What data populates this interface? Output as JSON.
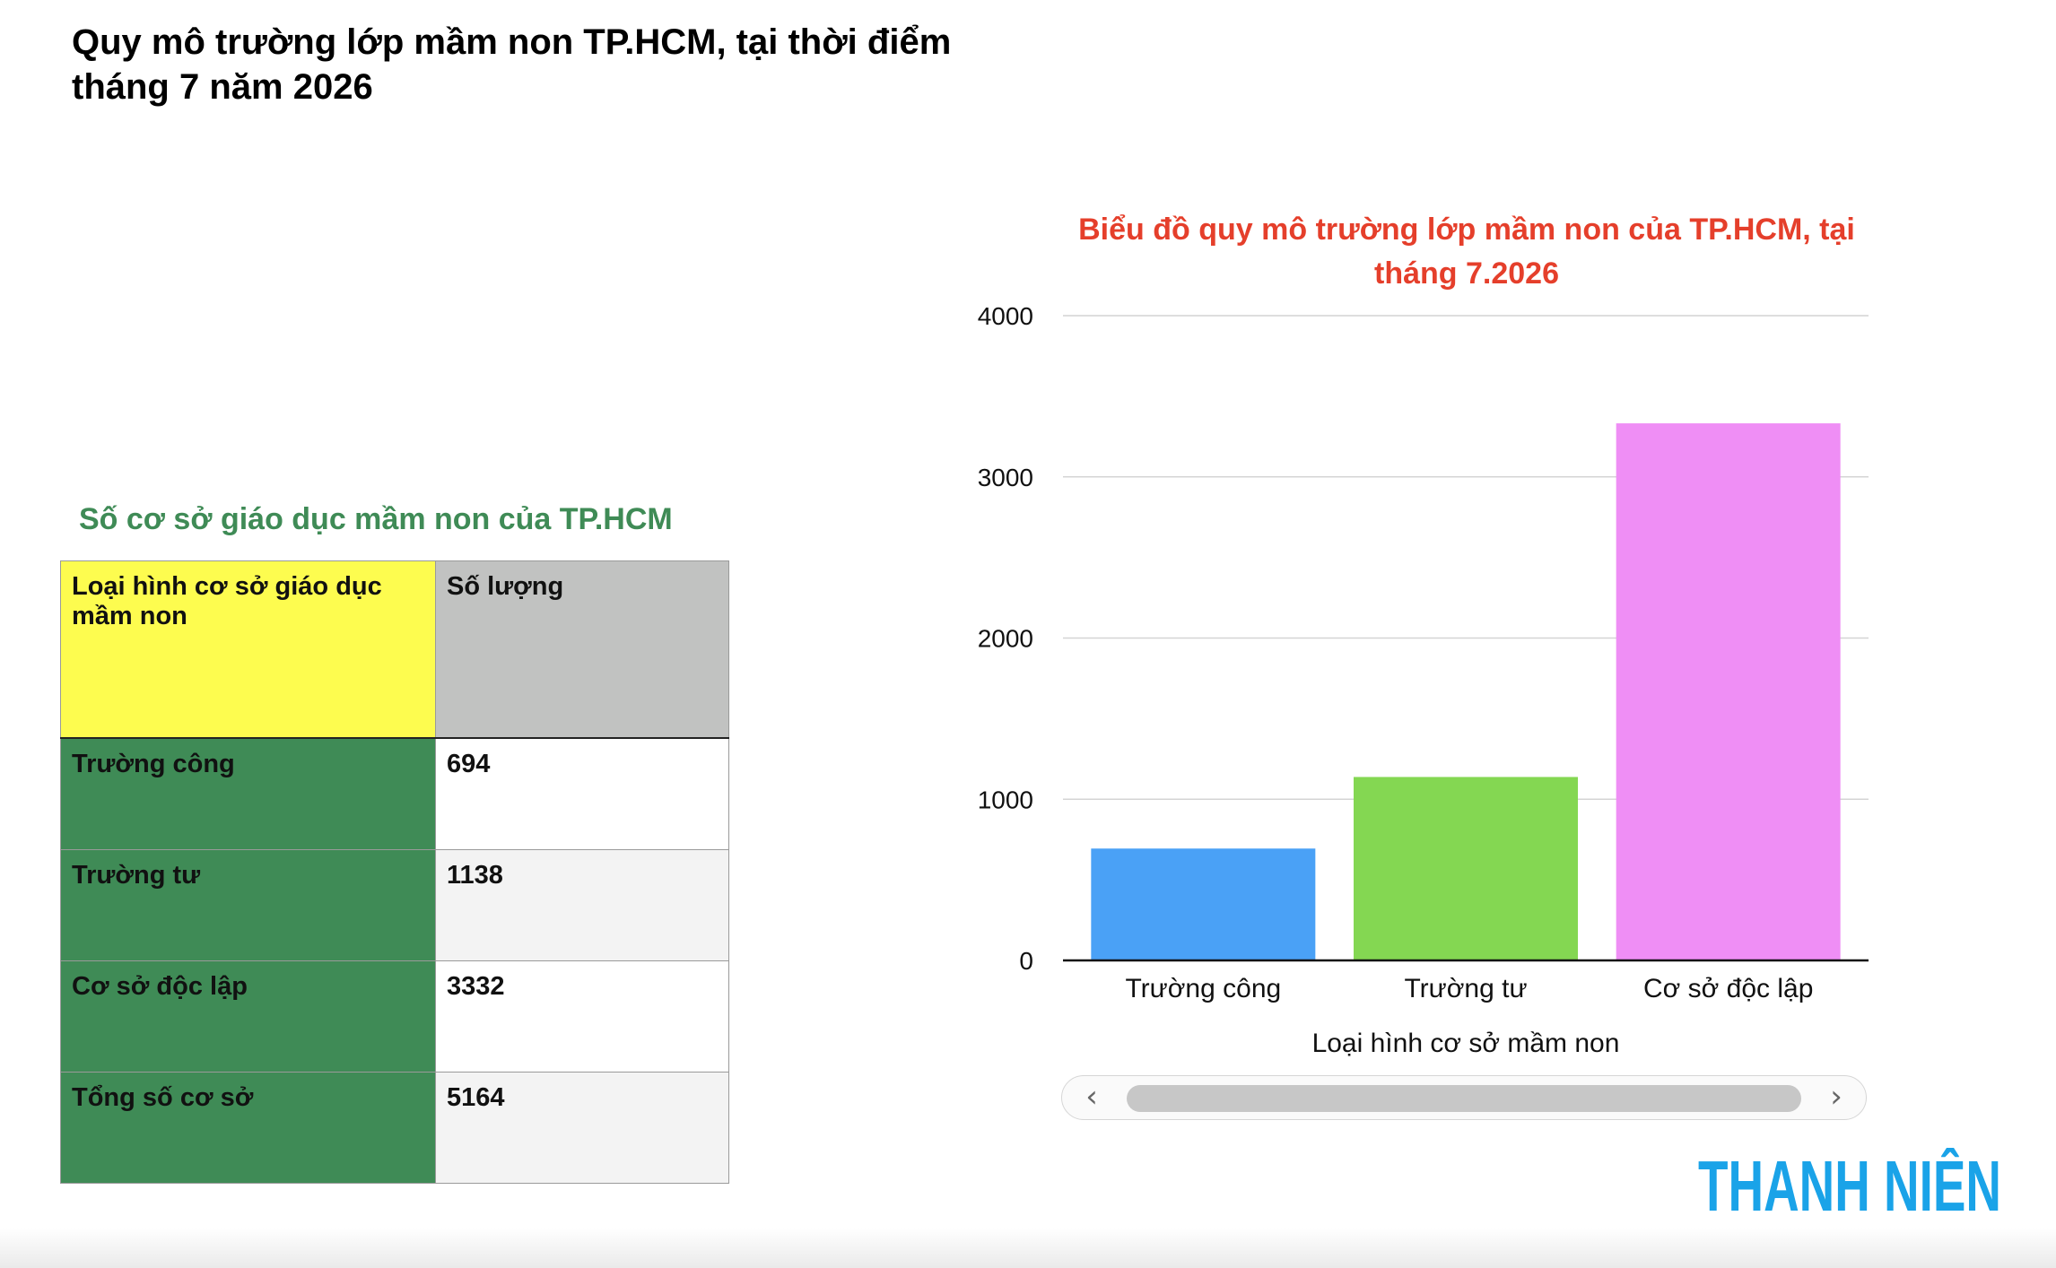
{
  "page": {
    "title": "Quy mô trường lớp mầm non TP.HCM, tại thời điểm tháng 7 năm 2026"
  },
  "table": {
    "title": "Số cơ sở giáo dục mầm non của TP.HCM",
    "headers": [
      "Loại hình cơ sở giáo dục mầm non",
      "Số lượng"
    ],
    "header_colors": [
      "#fdfc4f",
      "#c1c2c1"
    ],
    "label_color": "#3f8b56",
    "rows": [
      {
        "label": "Trường công",
        "value": "694"
      },
      {
        "label": "Trường tư",
        "value": "1138"
      },
      {
        "label": "Cơ sở độc lập",
        "value": "3332"
      },
      {
        "label": "Tổng số cơ sở",
        "value": "5164"
      }
    ]
  },
  "chart_data": {
    "type": "bar",
    "title": "Biểu đồ quy mô trường lớp mầm non của TP.HCM, tại tháng 7.2026",
    "title_color": "#e53f2b",
    "categories": [
      "Trường công",
      "Trường tư",
      "Cơ sở độc lập"
    ],
    "values": [
      694,
      1138,
      3332
    ],
    "colors": [
      "#4aa1f6",
      "#84d752",
      "#ef8ef5"
    ],
    "xlabel": "Loại hình cơ sở mầm non",
    "ylabel": "",
    "ylim": [
      0,
      4000
    ],
    "yticks": [
      0,
      1000,
      2000,
      3000,
      4000
    ],
    "grid": true,
    "legend": "none"
  },
  "logo": {
    "text": "THANH NIÊN",
    "color": "#1aa3e8"
  }
}
